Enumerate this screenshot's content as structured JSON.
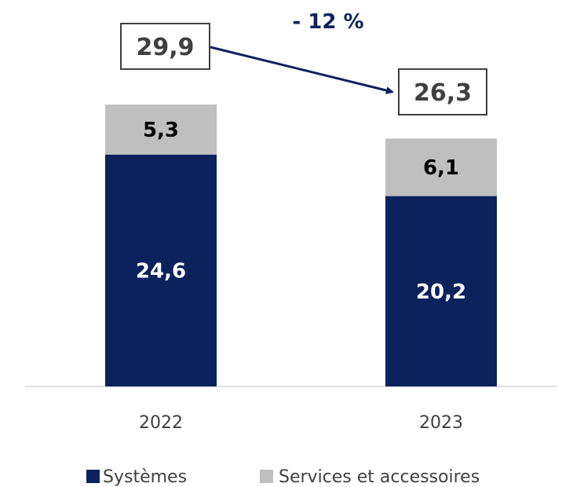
{
  "chart_data": {
    "type": "bar",
    "stacked": true,
    "categories": [
      "2022",
      "2023"
    ],
    "series": [
      {
        "name": "Systèmes",
        "values": [
          24.6,
          20.2
        ],
        "color": "#0c225c",
        "label_color": "#ffffff",
        "labels": [
          "24,6",
          "20,2"
        ]
      },
      {
        "name": "Services et accessoires",
        "values": [
          5.3,
          6.1
        ],
        "color": "#bfbfbf",
        "label_color": "#000000",
        "labels": [
          "5,3",
          "6,1"
        ]
      }
    ],
    "totals": [
      29.9,
      26.3
    ],
    "total_labels": [
      "29,9",
      "26,3"
    ],
    "change_label": "- 12 %",
    "ylim": [
      0,
      30
    ],
    "grid": false,
    "legend_position": "bottom",
    "colors": {
      "axis": "#d9d9d9",
      "arrow": "#0c225c",
      "text": "#404040",
      "box_border": "#404040"
    }
  }
}
